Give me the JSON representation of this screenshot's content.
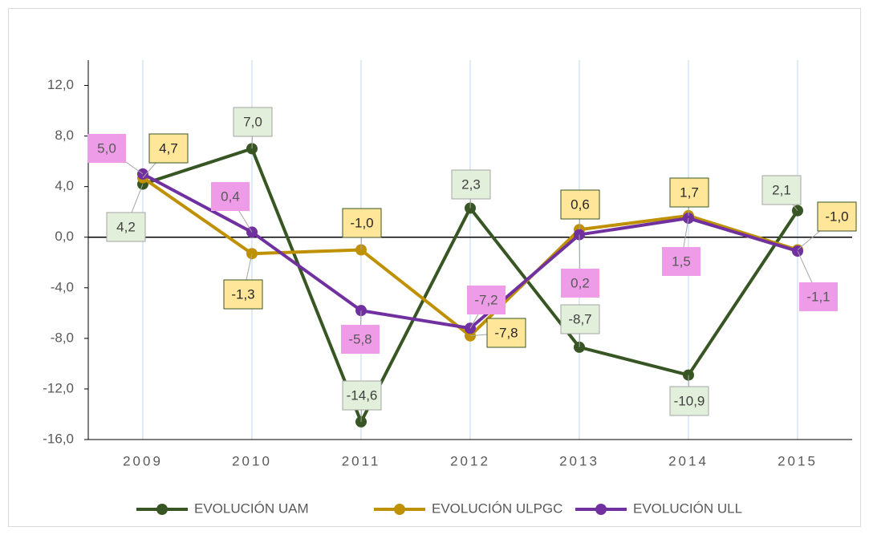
{
  "chart_data": {
    "type": "line",
    "categories": [
      "2009",
      "2010",
      "2011",
      "2012",
      "2013",
      "2014",
      "2015"
    ],
    "series": [
      {
        "name": "EVOLUCIÓN UAM",
        "color": "#375623",
        "values": [
          4.2,
          7.0,
          -14.6,
          2.3,
          -8.7,
          -10.9,
          2.1
        ],
        "value_labels": [
          "4,2",
          "7,0",
          "-14,6",
          "2,3",
          "-8,7",
          "-10,9",
          "2,1"
        ]
      },
      {
        "name": "EVOLUCIÓN ULPGC",
        "color": "#bf9000",
        "values": [
          4.7,
          -1.3,
          -1.0,
          -7.8,
          0.6,
          1.7,
          -1.0
        ],
        "value_labels": [
          "4,7",
          "-1,3",
          "-1,0",
          "-7,8",
          "0,6",
          "1,7",
          "-1,0"
        ]
      },
      {
        "name": "EVOLUCIÓN ULL",
        "color": "#7030a0",
        "values": [
          5.0,
          0.4,
          -5.8,
          -7.2,
          0.2,
          1.5,
          -1.1
        ],
        "value_labels": [
          "5,0",
          "0,4",
          "-5,8",
          "-7,2",
          "0,2",
          "1,5",
          "-1,1"
        ]
      }
    ],
    "ylim": [
      -16,
      14
    ],
    "yticks": [
      {
        "value": -16,
        "label": "-16,0"
      },
      {
        "value": -12,
        "label": "-12,0"
      },
      {
        "value": -8,
        "label": "-8,0"
      },
      {
        "value": -4,
        "label": "-4,0"
      },
      {
        "value": 0,
        "label": "0,0"
      },
      {
        "value": 4,
        "label": "4,0"
      },
      {
        "value": 8,
        "label": "8,0"
      },
      {
        "value": 12,
        "label": "12,0"
      }
    ],
    "grid": true,
    "legend": "bottom"
  }
}
